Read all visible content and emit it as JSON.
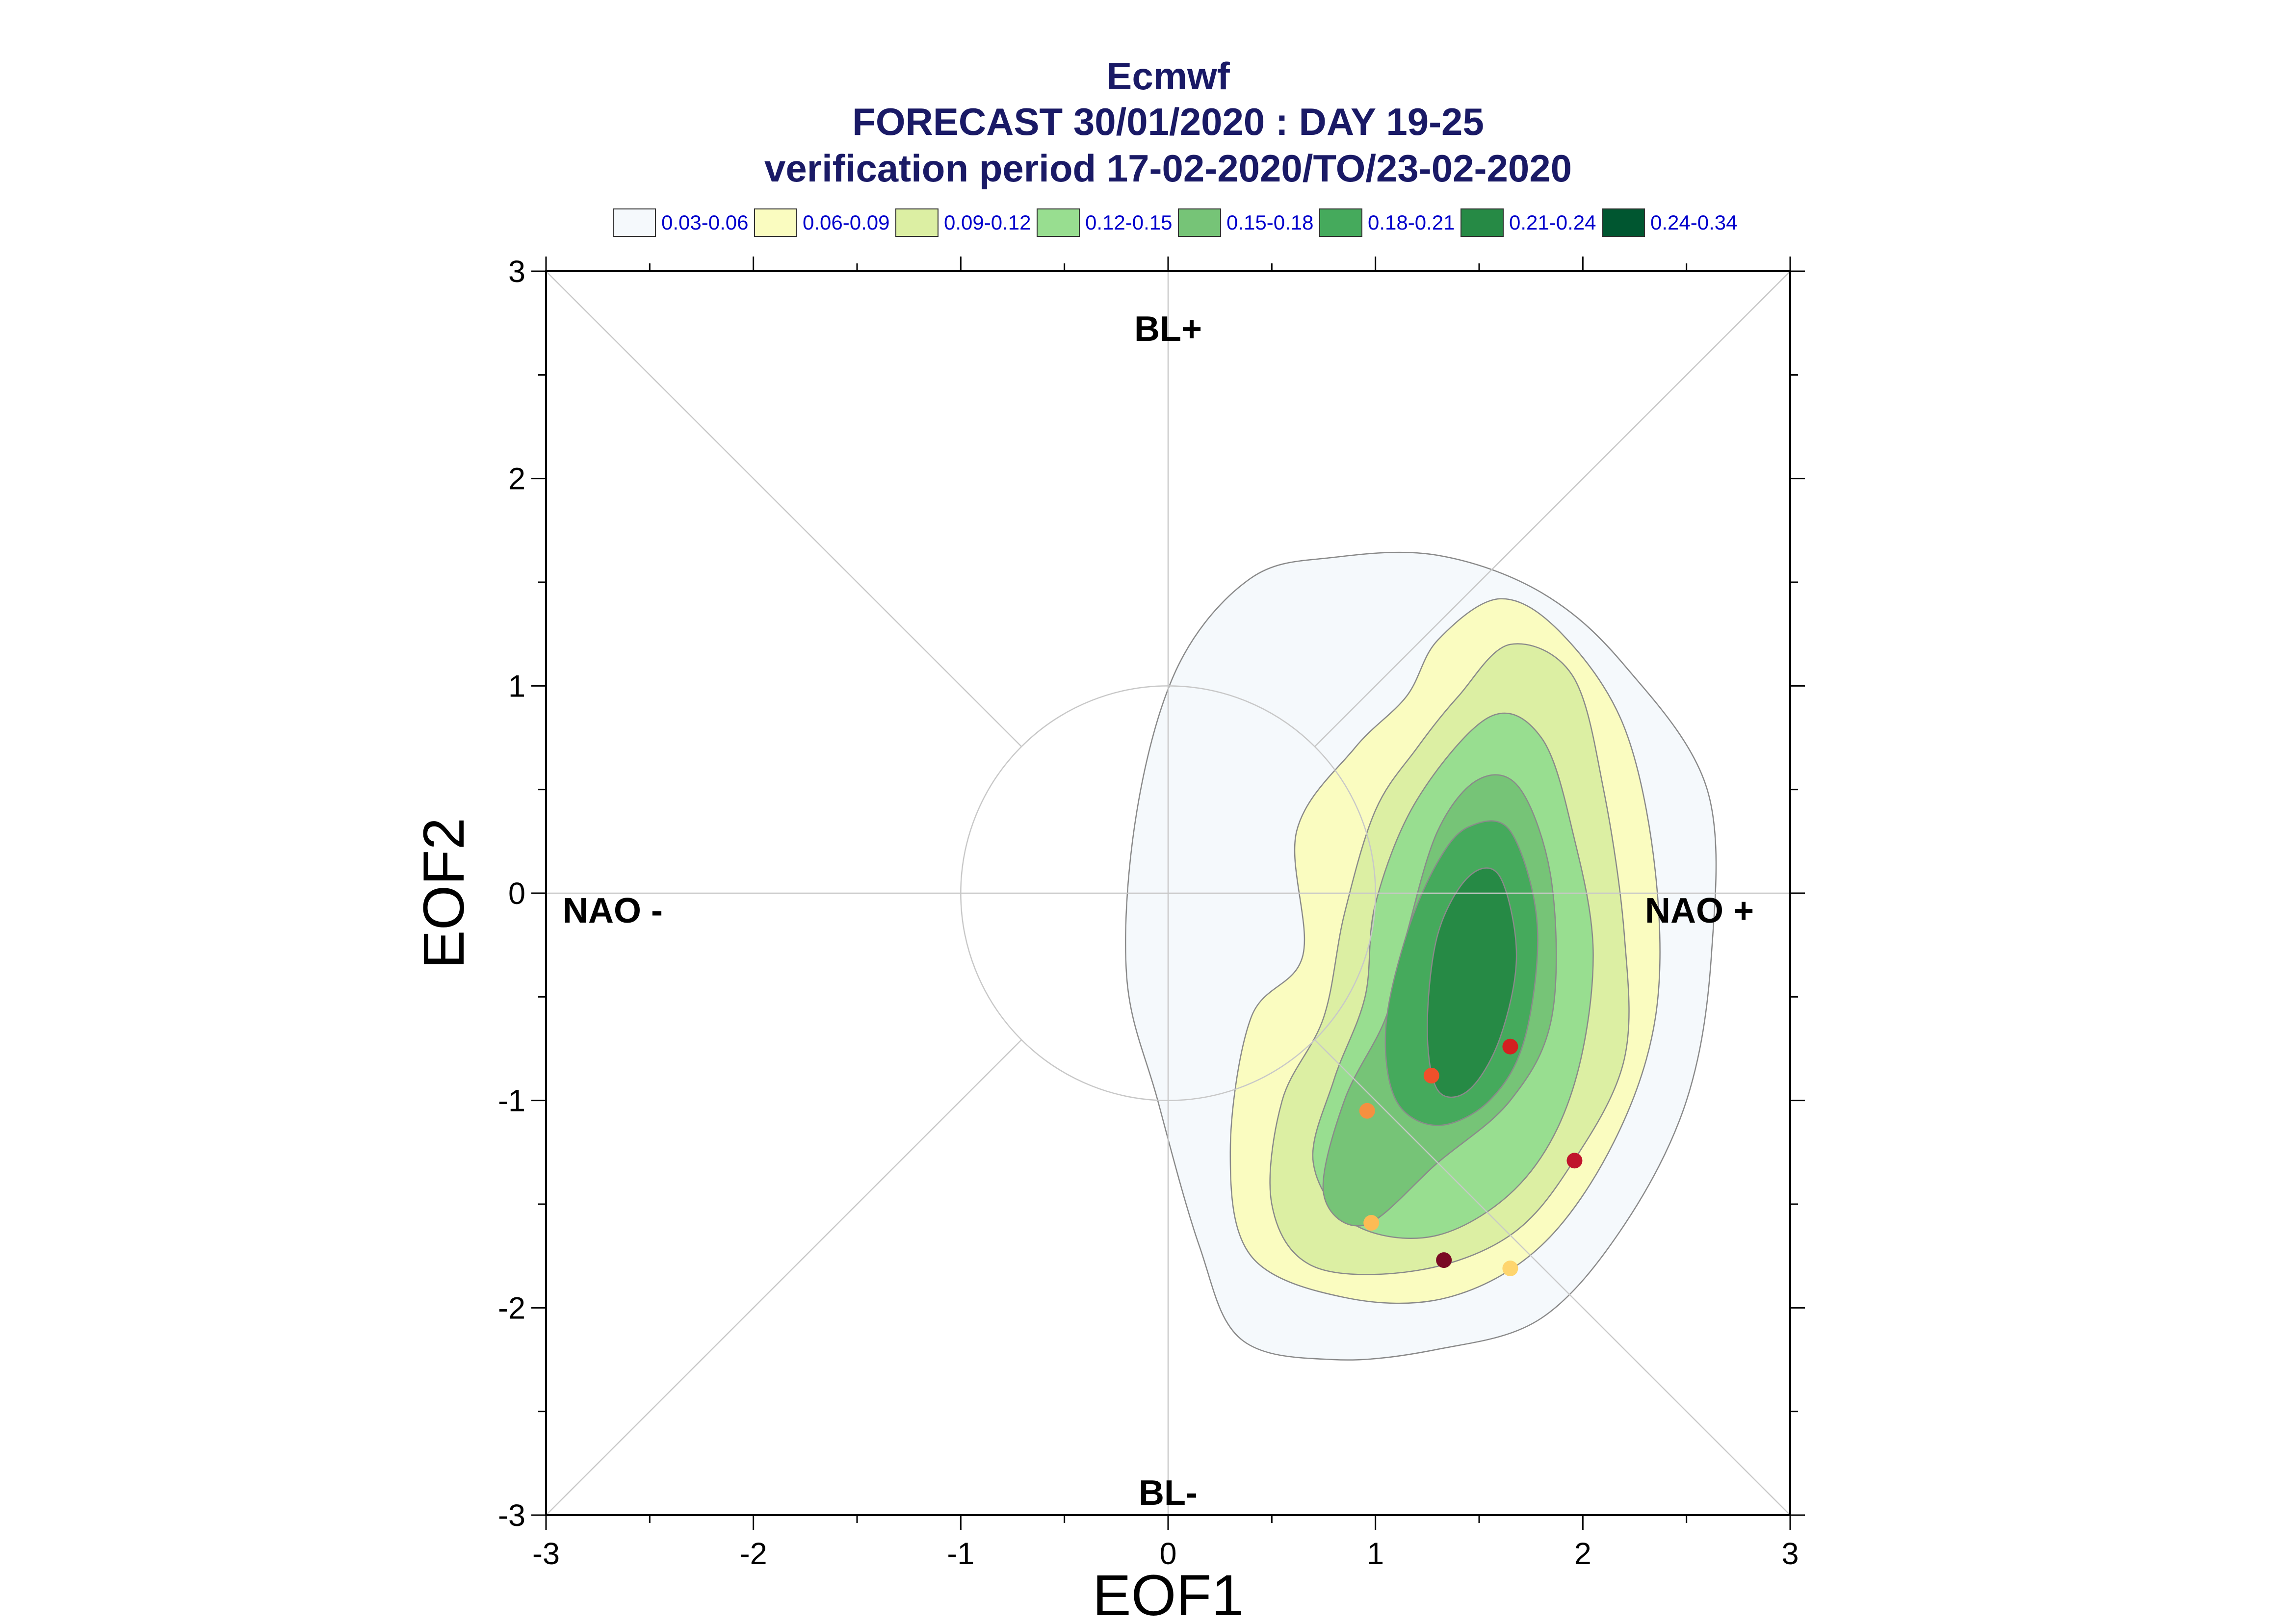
{
  "chart_data": {
    "type": "contour",
    "title": "Ecmwf",
    "subtitle_1": "FORECAST 30/01/2020 : DAY 19-25",
    "subtitle_2": "verification period 17-02-2020/TO/23-02-2020",
    "xlabel": "EOF1",
    "ylabel": "EOF2",
    "xlim": [
      -3,
      3
    ],
    "ylim": [
      -3,
      3
    ],
    "x_ticks": [
      "-3",
      "-2",
      "-1",
      "0",
      "1",
      "2",
      "3"
    ],
    "y_ticks": [
      "3",
      "2",
      "1",
      "0",
      "-1",
      "-2",
      "-3"
    ],
    "regime_labels": {
      "top": "BL+",
      "bottom": "BL-",
      "left": "NAO -",
      "right": "NAO +"
    },
    "reference_circle": {
      "center": [
        0,
        0
      ],
      "radius": 1
    },
    "legend": [
      {
        "label": "0.03-0.06",
        "color": "#f5f9fc"
      },
      {
        "label": "0.06-0.09",
        "color": "#fafcc0"
      },
      {
        "label": "0.09-0.12",
        "color": "#dcefa3"
      },
      {
        "label": "0.12-0.15",
        "color": "#98de90"
      },
      {
        "label": "0.15-0.18",
        "color": "#76c477"
      },
      {
        "label": "0.18-0.21",
        "color": "#45aa5c"
      },
      {
        "label": "0.21-0.24",
        "color": "#268a45"
      },
      {
        "label": "0.24-0.34",
        "color": "#005630"
      }
    ],
    "density_levels": [
      {
        "level": "0.03-0.06",
        "color": "#f5f9fc",
        "outline": [
          [
            0.4,
            1.52
          ],
          [
            0.8,
            1.62
          ],
          [
            1.3,
            1.63
          ],
          [
            1.8,
            1.45
          ],
          [
            2.2,
            1.1
          ],
          [
            2.6,
            0.5
          ],
          [
            2.62,
            -0.3
          ],
          [
            2.5,
            -1.0
          ],
          [
            2.2,
            -1.6
          ],
          [
            1.8,
            -2.05
          ],
          [
            1.3,
            -2.2
          ],
          [
            0.8,
            -2.25
          ],
          [
            0.35,
            -2.15
          ],
          [
            0.15,
            -1.7
          ],
          [
            -0.05,
            -1.0
          ],
          [
            -0.2,
            -0.4
          ],
          [
            -0.15,
            0.4
          ],
          [
            0.05,
            1.1
          ]
        ]
      },
      {
        "level": "0.06-0.09",
        "color": "#fafcc0",
        "outline": [
          [
            1.3,
            1.22
          ],
          [
            1.6,
            1.42
          ],
          [
            1.9,
            1.25
          ],
          [
            2.2,
            0.8
          ],
          [
            2.35,
            0.1
          ],
          [
            2.35,
            -0.6
          ],
          [
            2.15,
            -1.2
          ],
          [
            1.8,
            -1.7
          ],
          [
            1.35,
            -1.95
          ],
          [
            0.85,
            -1.95
          ],
          [
            0.4,
            -1.75
          ],
          [
            0.3,
            -1.25
          ],
          [
            0.4,
            -0.6
          ],
          [
            0.65,
            -0.3
          ],
          [
            0.62,
            0.3
          ],
          [
            0.9,
            0.7
          ],
          [
            1.15,
            0.95
          ]
        ]
      },
      {
        "level": "0.09-0.12",
        "color": "#dcefa3",
        "outline": [
          [
            1.4,
            0.95
          ],
          [
            1.65,
            1.2
          ],
          [
            1.95,
            1.05
          ],
          [
            2.1,
            0.5
          ],
          [
            2.2,
            -0.2
          ],
          [
            2.2,
            -0.8
          ],
          [
            1.95,
            -1.3
          ],
          [
            1.65,
            -1.65
          ],
          [
            1.2,
            -1.82
          ],
          [
            0.7,
            -1.8
          ],
          [
            0.5,
            -1.5
          ],
          [
            0.55,
            -1.0
          ],
          [
            0.75,
            -0.6
          ],
          [
            0.85,
            -0.1
          ],
          [
            1.0,
            0.4
          ],
          [
            1.2,
            0.7
          ]
        ]
      },
      {
        "level": "0.12-0.15",
        "color": "#98de90",
        "outline": [
          [
            1.55,
            0.85
          ],
          [
            1.8,
            0.75
          ],
          [
            1.95,
            0.3
          ],
          [
            2.05,
            -0.3
          ],
          [
            1.95,
            -0.95
          ],
          [
            1.7,
            -1.4
          ],
          [
            1.3,
            -1.65
          ],
          [
            0.9,
            -1.6
          ],
          [
            0.7,
            -1.3
          ],
          [
            0.8,
            -0.9
          ],
          [
            0.95,
            -0.5
          ],
          [
            1.0,
            -0.05
          ],
          [
            1.2,
            0.45
          ]
        ]
      },
      {
        "level": "0.15-0.18",
        "color": "#76c477",
        "outline": [
          [
            1.5,
            0.55
          ],
          [
            1.7,
            0.5
          ],
          [
            1.85,
            0.05
          ],
          [
            1.85,
            -0.6
          ],
          [
            1.65,
            -1.0
          ],
          [
            1.3,
            -1.3
          ],
          [
            0.95,
            -1.6
          ],
          [
            0.75,
            -1.45
          ],
          [
            0.85,
            -1.0
          ],
          [
            1.05,
            -0.6
          ],
          [
            1.15,
            -0.2
          ],
          [
            1.3,
            0.3
          ]
        ]
      },
      {
        "level": "0.18-0.21",
        "color": "#45aa5c",
        "outline": [
          [
            1.45,
            0.32
          ],
          [
            1.65,
            0.3
          ],
          [
            1.78,
            -0.15
          ],
          [
            1.72,
            -0.7
          ],
          [
            1.55,
            -1.0
          ],
          [
            1.3,
            -1.12
          ],
          [
            1.1,
            -1.0
          ],
          [
            1.05,
            -0.65
          ],
          [
            1.15,
            -0.2
          ],
          [
            1.3,
            0.15
          ]
        ]
      },
      {
        "level": "0.21-0.24",
        "color": "#268a45",
        "outline": [
          [
            1.45,
            0.08
          ],
          [
            1.6,
            0.08
          ],
          [
            1.68,
            -0.3
          ],
          [
            1.6,
            -0.7
          ],
          [
            1.45,
            -0.95
          ],
          [
            1.3,
            -0.95
          ],
          [
            1.25,
            -0.65
          ],
          [
            1.3,
            -0.2
          ]
        ]
      }
    ],
    "ensemble_points": [
      {
        "x": 1.65,
        "y": -0.74,
        "color": "#d42020"
      },
      {
        "x": 1.27,
        "y": -0.88,
        "color": "#f0502a"
      },
      {
        "x": 0.96,
        "y": -1.05,
        "color": "#f59040"
      },
      {
        "x": 1.96,
        "y": -1.29,
        "color": "#c0142c"
      },
      {
        "x": 0.98,
        "y": -1.59,
        "color": "#fdbb54"
      },
      {
        "x": 1.33,
        "y": -1.77,
        "color": "#7a0a24"
      },
      {
        "x": 1.65,
        "y": -1.81,
        "color": "#fed56e"
      }
    ]
  }
}
